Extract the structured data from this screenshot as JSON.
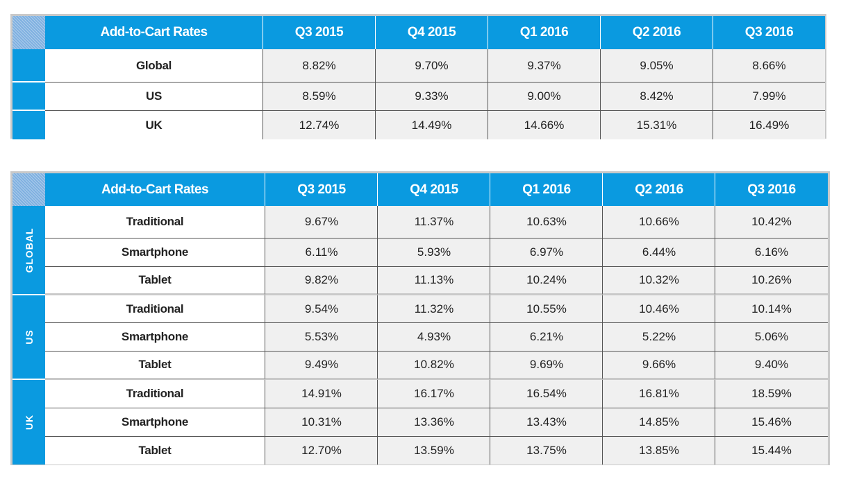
{
  "colors": {
    "header_blue": "#0a9ae0",
    "cell_gray": "#f0f0f0",
    "frame_gray": "#c9c9c9"
  },
  "table1": {
    "header": [
      "Add-to-Cart Rates",
      "Q3 2015",
      "Q4 2015",
      "Q1 2016",
      "Q2 2016",
      "Q3 2016"
    ],
    "rows": [
      {
        "label": "Global",
        "values": [
          "8.82%",
          "9.70%",
          "9.37%",
          "9.05%",
          "8.66%"
        ]
      },
      {
        "label": "US",
        "values": [
          "8.59%",
          "9.33%",
          "9.00%",
          "8.42%",
          "7.99%"
        ]
      },
      {
        "label": "UK",
        "values": [
          "12.74%",
          "14.49%",
          "14.66%",
          "15.31%",
          "16.49%"
        ]
      }
    ]
  },
  "table2": {
    "header": [
      "Add-to-Cart Rates",
      "Q3 2015",
      "Q4 2015",
      "Q1 2016",
      "Q2 2016",
      "Q3 2016"
    ],
    "groups": [
      {
        "label": "GLOBAL",
        "rows": [
          {
            "label": "Traditional",
            "values": [
              "9.67%",
              "11.37%",
              "10.63%",
              "10.66%",
              "10.42%"
            ]
          },
          {
            "label": "Smartphone",
            "values": [
              "6.11%",
              "5.93%",
              "6.97%",
              "6.44%",
              "6.16%"
            ]
          },
          {
            "label": "Tablet",
            "values": [
              "9.82%",
              "11.13%",
              "10.24%",
              "10.32%",
              "10.26%"
            ]
          }
        ]
      },
      {
        "label": "US",
        "rows": [
          {
            "label": "Traditional",
            "values": [
              "9.54%",
              "11.32%",
              "10.55%",
              "10.46%",
              "10.14%"
            ]
          },
          {
            "label": "Smartphone",
            "values": [
              "5.53%",
              "4.93%",
              "6.21%",
              "5.22%",
              "5.06%"
            ]
          },
          {
            "label": "Tablet",
            "values": [
              "9.49%",
              "10.82%",
              "9.69%",
              "9.66%",
              "9.40%"
            ]
          }
        ]
      },
      {
        "label": "UK",
        "rows": [
          {
            "label": "Traditional",
            "values": [
              "14.91%",
              "16.17%",
              "16.54%",
              "16.81%",
              "18.59%"
            ]
          },
          {
            "label": "Smartphone",
            "values": [
              "10.31%",
              "13.36%",
              "13.43%",
              "14.85%",
              "15.46%"
            ]
          },
          {
            "label": "Tablet",
            "values": [
              "12.70%",
              "13.59%",
              "13.75%",
              "13.85%",
              "15.44%"
            ]
          }
        ]
      }
    ]
  }
}
